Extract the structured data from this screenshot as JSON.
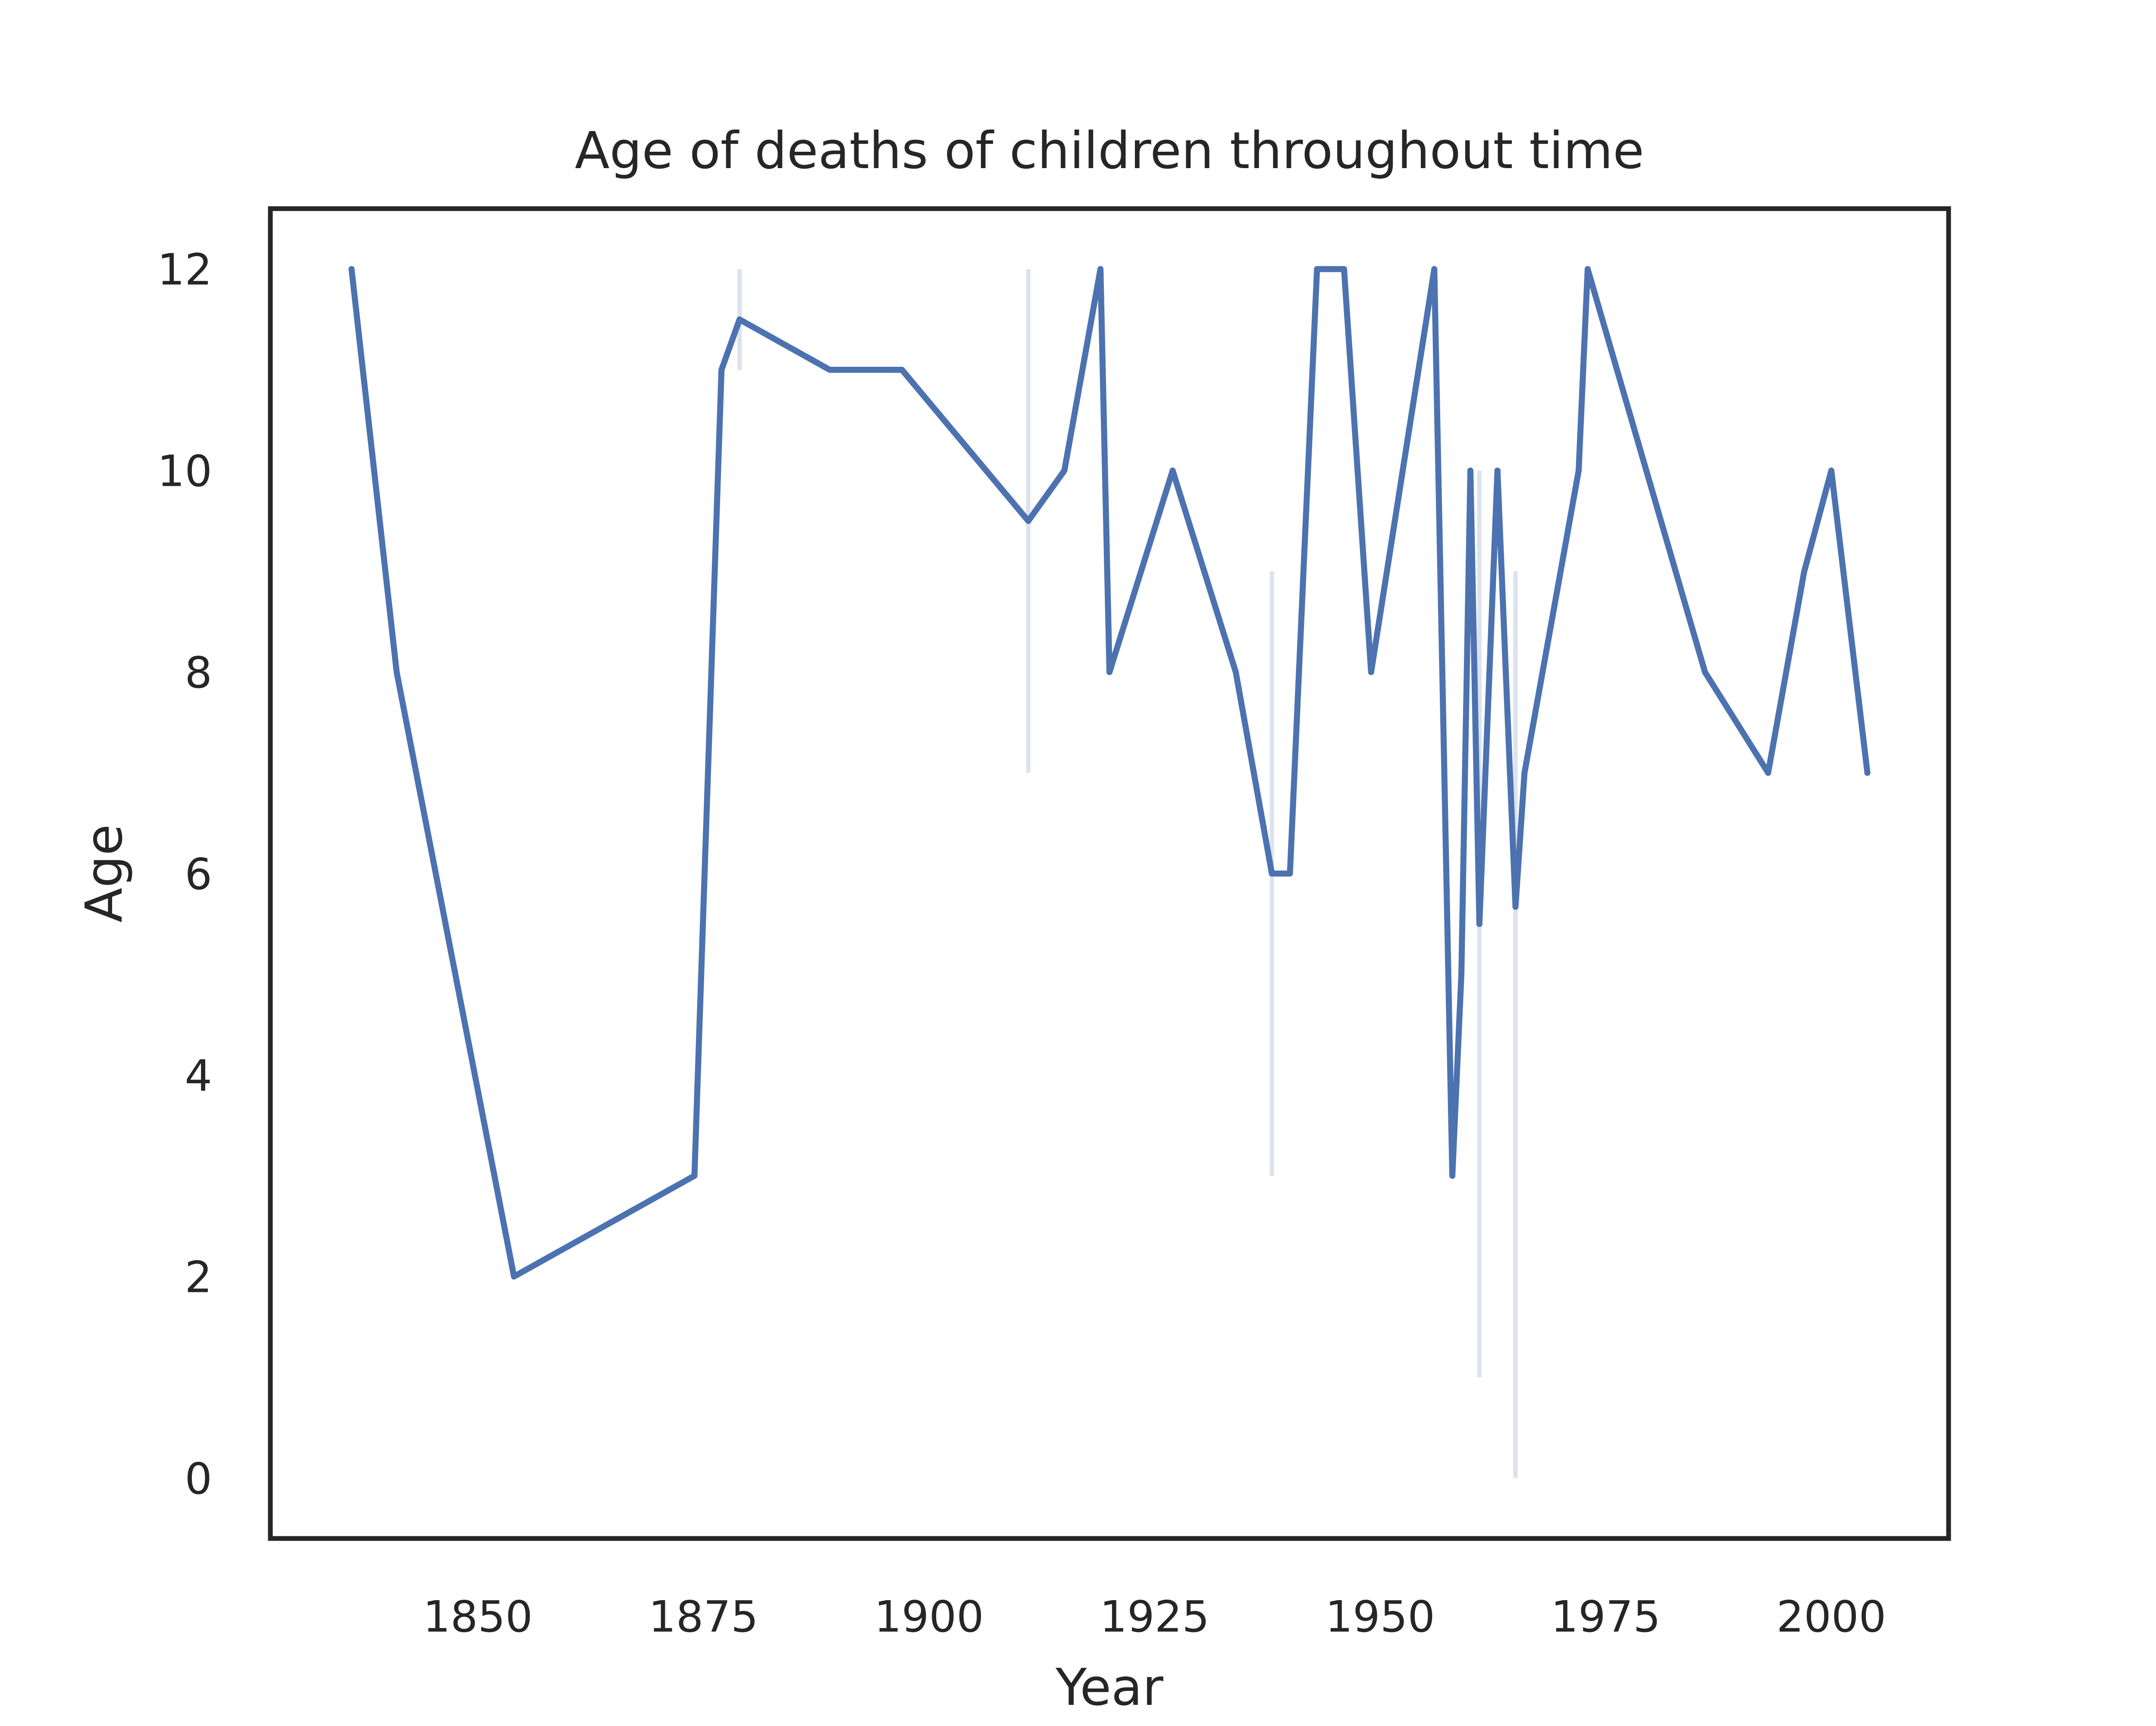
{
  "chart_data": {
    "type": "line",
    "title": "Age of deaths of children throughout time",
    "xlabel": "Year",
    "ylabel": "Age",
    "xlim": [
      1827,
      2013
    ],
    "ylim": [
      -0.6,
      12.6
    ],
    "xticks": [
      1850,
      1875,
      1900,
      1925,
      1950,
      1975,
      2000
    ],
    "yticks": [
      0,
      2,
      4,
      6,
      8,
      10,
      12
    ],
    "grid": false,
    "line_color": "#4c72b0",
    "band_color": "#4c72b0",
    "series": [
      {
        "points": [
          [
            1836,
            12
          ],
          [
            1841,
            8
          ],
          [
            1854,
            2
          ],
          [
            1874,
            3
          ],
          [
            1877,
            11
          ],
          [
            1879,
            11.5
          ],
          [
            1889,
            11
          ],
          [
            1897,
            11
          ],
          [
            1911,
            9.5
          ],
          [
            1915,
            10
          ],
          [
            1919,
            12
          ],
          [
            1920,
            8
          ],
          [
            1927,
            10
          ],
          [
            1934,
            8
          ],
          [
            1938,
            6
          ],
          [
            1940,
            6
          ],
          [
            1943,
            12
          ],
          [
            1946,
            12
          ],
          [
            1949,
            8
          ],
          [
            1956,
            12
          ],
          [
            1958,
            3
          ],
          [
            1959,
            5
          ],
          [
            1960,
            10
          ],
          [
            1961,
            5.5
          ],
          [
            1963,
            10
          ],
          [
            1965,
            5.67
          ],
          [
            1966,
            7
          ],
          [
            1972,
            10
          ],
          [
            1973,
            12
          ],
          [
            1986,
            8
          ],
          [
            1993,
            7
          ],
          [
            1997,
            9
          ],
          [
            2000,
            10
          ],
          [
            2004,
            7
          ]
        ],
        "ci_bands": [
          {
            "x": 1879,
            "low": 11,
            "high": 12
          },
          {
            "x": 1911,
            "low": 7,
            "high": 12
          },
          {
            "x": 1938,
            "low": 3,
            "high": 9
          },
          {
            "x": 1961,
            "low": 1,
            "high": 10
          },
          {
            "x": 1965,
            "low": 0,
            "high": 9
          }
        ]
      }
    ]
  }
}
